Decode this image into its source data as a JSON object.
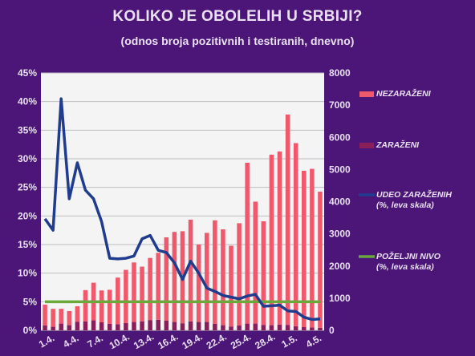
{
  "header": {
    "title": "KOLIKO JE OBOLELIH U SRBIJI?",
    "subtitle": "(odnos broja pozitivnih i testiranih, dnevno)"
  },
  "colors": {
    "background": "#4b1678",
    "plot_area": "#f4f4f4",
    "grid": "#bdbdbd",
    "nezarazeni": "#f0586b",
    "zarazeni": "#8a1e5a",
    "udeo_line": "#203c8f",
    "pozeljni_line": "#6aa83a",
    "text": "#e9e0f2"
  },
  "chart_data": {
    "type": "bar",
    "title": "KOLIKO JE OBOLELIH U SRBIJI?",
    "subtitle": "(odnos broja pozitivnih i testiranih, dnevno)",
    "categories": [
      "1.4.",
      "2.4.",
      "3.4.",
      "4.4.",
      "5.4.",
      "6.4.",
      "7.4.",
      "8.4.",
      "9.4.",
      "10.4.",
      "11.4.",
      "12.4.",
      "13.4.",
      "14.4.",
      "15.4.",
      "16.4.",
      "17.4.",
      "18.4.",
      "19.4.",
      "20.4.",
      "21.4.",
      "22.4.",
      "23.4.",
      "24.4.",
      "25.4.",
      "26.4.",
      "27.4.",
      "28.4.",
      "29.4.",
      "30.4.",
      "1.5.",
      "2.5.",
      "3.5.",
      "4.5.",
      "5.5."
    ],
    "x_tick_labels": [
      "1.4.",
      "4.4.",
      "7.4.",
      "10.4.",
      "13.4.",
      "16.4.",
      "19.4.",
      "22.4.",
      "25.4.",
      "28.4.",
      "1.5.",
      "4.5."
    ],
    "left_axis": {
      "ticks": [
        "0%",
        "5%",
        "10%",
        "15%",
        "20%",
        "25%",
        "30%",
        "35%",
        "40%",
        "45%"
      ],
      "range": [
        0,
        45
      ]
    },
    "right_axis": {
      "ticks": [
        "0",
        "1000",
        "2000",
        "3000",
        "4000",
        "5000",
        "6000",
        "7000",
        "8000"
      ],
      "range": [
        0,
        8000
      ]
    },
    "stacked": true,
    "grid": true,
    "legend_position": "right",
    "series": [
      {
        "name": "NEZARAŽENI",
        "type": "bar",
        "axis": "right",
        "values": [
          650,
          560,
          460,
          440,
          480,
          970,
          1170,
          990,
          1060,
          1450,
          1650,
          1850,
          1700,
          1930,
          2080,
          2590,
          2800,
          2860,
          3160,
          2410,
          2770,
          3220,
          2980,
          2510,
          3180,
          5000,
          3790,
          3220,
          5300,
          5380,
          6540,
          5690,
          4860,
          4930,
          4230
        ]
      },
      {
        "name": "ZARAŽENI",
        "type": "bar",
        "axis": "right",
        "values": [
          150,
          110,
          210,
          160,
          270,
          280,
          310,
          250,
          200,
          190,
          230,
          260,
          280,
          320,
          330,
          300,
          260,
          220,
          280,
          260,
          260,
          200,
          160,
          120,
          150,
          210,
          210,
          170,
          160,
          180,
          170,
          130,
          100,
          90,
          80
        ]
      },
      {
        "name": "UDEO ZARAŽENIH (%, leva skala)",
        "type": "line",
        "axis": "left",
        "values": [
          19.5,
          17.5,
          40.5,
          23.0,
          29.3,
          24.5,
          23.0,
          19.0,
          12.6,
          12.5,
          12.6,
          13.0,
          16.0,
          16.6,
          14.0,
          13.6,
          11.8,
          8.9,
          12.1,
          10.0,
          7.4,
          6.8,
          6.1,
          5.8,
          5.5,
          6.0,
          6.3,
          4.2,
          4.3,
          4.4,
          3.4,
          3.3,
          2.3,
          1.9,
          2.0
        ]
      },
      {
        "name": "POŽELJNI NIVO (%, leva skala)",
        "type": "line",
        "axis": "left",
        "values": [
          5,
          5,
          5,
          5,
          5,
          5,
          5,
          5,
          5,
          5,
          5,
          5,
          5,
          5,
          5,
          5,
          5,
          5,
          5,
          5,
          5,
          5,
          5,
          5,
          5,
          5,
          5,
          5,
          5,
          5,
          5,
          5,
          5,
          5,
          5
        ]
      }
    ]
  },
  "legend": [
    {
      "label": "NEZARAŽENI",
      "sub": "",
      "marker": "bar",
      "color": "#f0586b"
    },
    {
      "label": "ZARAŽENI",
      "sub": "",
      "marker": "bar",
      "color": "#8a1e5a"
    },
    {
      "label": "UDEO ZARAŽENIH",
      "sub": "(%, leva skala)",
      "marker": "line",
      "color": "#203c8f"
    },
    {
      "label": "POŽELJNI NIVO",
      "sub": "(%, leva skala)",
      "marker": "line",
      "color": "#6aa83a"
    }
  ]
}
